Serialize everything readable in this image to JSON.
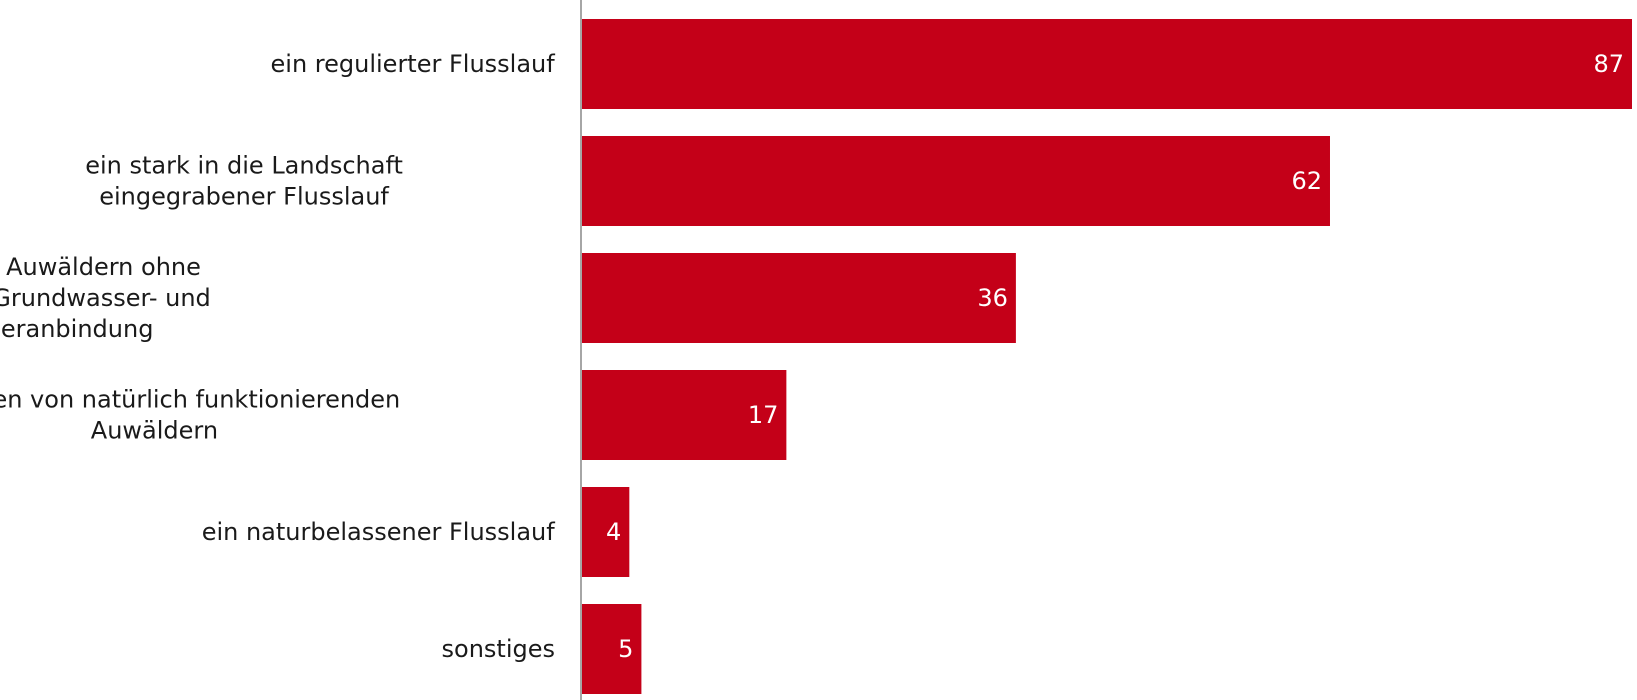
{
  "chart_data": {
    "type": "bar",
    "orientation": "horizontal",
    "categories": [
      [
        "ein regulierter Flusslauf"
      ],
      [
        "ein stark in die Landschaft",
        "eingegrabener Flusslauf"
      ],
      [
        "umgeben von Auwäldern ohne",
        "ausreichende Grundwasser- und",
        "Hochwasseranbindung"
      ],
      [
        "umgeben von natürlich funktionierenden",
        "Auwäldern"
      ],
      [
        "ein naturbelassener Flusslauf"
      ],
      [
        "sonstiges"
      ]
    ],
    "values": [
      87,
      62,
      36,
      17,
      4,
      5
    ],
    "xlim": [
      0,
      87
    ],
    "grid": false,
    "legend": false,
    "bar_color": "#c40018",
    "axis_color": "#a6a6a6",
    "value_labels": "inside-end"
  }
}
